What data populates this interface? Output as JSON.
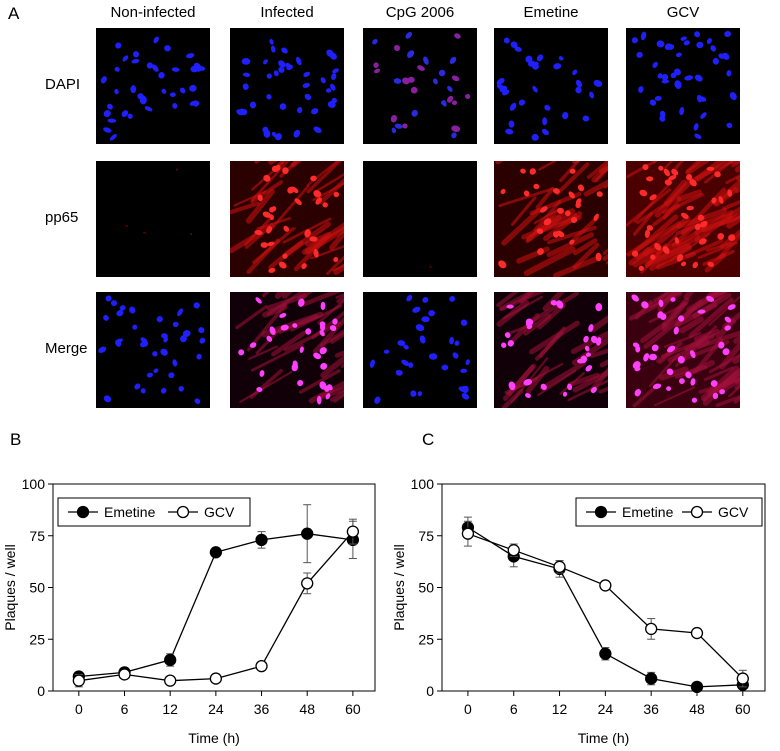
{
  "panel_a": {
    "letter": "A",
    "columns": [
      "Non-infected",
      "Infected",
      "CpG 2006",
      "Emetine",
      "GCV"
    ],
    "rows": [
      "DAPI",
      "pp65",
      "Merge"
    ]
  },
  "chart_data": [
    {
      "type": "line",
      "panel_letter": "B",
      "xlabel": "Time (h)",
      "ylabel": "Plaques / well",
      "x": [
        0,
        6,
        12,
        24,
        36,
        48,
        60
      ],
      "x_ticks": [
        "0",
        "6",
        "12",
        "24",
        "36",
        "48",
        "60"
      ],
      "y_ticks": [
        "0",
        "25",
        "50",
        "75",
        "100"
      ],
      "ylim": [
        0,
        100
      ],
      "legend_position": "top-left",
      "series": [
        {
          "name": "Emetine",
          "marker": "filled-circle",
          "values": [
            7,
            9,
            15,
            67,
            73,
            76,
            73
          ],
          "errors": [
            1,
            1,
            3,
            1,
            4,
            14,
            9
          ]
        },
        {
          "name": "GCV",
          "marker": "open-circle",
          "values": [
            5,
            8,
            5,
            6,
            12,
            52,
            77
          ],
          "errors": [
            3,
            1,
            1,
            1,
            1,
            5,
            6
          ]
        }
      ]
    },
    {
      "type": "line",
      "panel_letter": "C",
      "xlabel": "Time (h)",
      "ylabel": "Plaques / well",
      "x": [
        0,
        6,
        12,
        24,
        36,
        48,
        60
      ],
      "x_ticks": [
        "0",
        "6",
        "12",
        "24",
        "36",
        "48",
        "60"
      ],
      "y_ticks": [
        "0",
        "25",
        "50",
        "75",
        "100"
      ],
      "ylim": [
        0,
        100
      ],
      "legend_position": "top-right",
      "series": [
        {
          "name": "Emetine",
          "marker": "filled-circle",
          "values": [
            79,
            65,
            59,
            18,
            6,
            2,
            3
          ],
          "errors": [
            5,
            5,
            4,
            3,
            3,
            1,
            1
          ]
        },
        {
          "name": "GCV",
          "marker": "open-circle",
          "values": [
            76,
            68,
            60,
            51,
            30,
            28,
            6
          ],
          "errors": [
            6,
            3,
            3,
            1,
            5,
            2,
            4
          ]
        }
      ]
    }
  ]
}
